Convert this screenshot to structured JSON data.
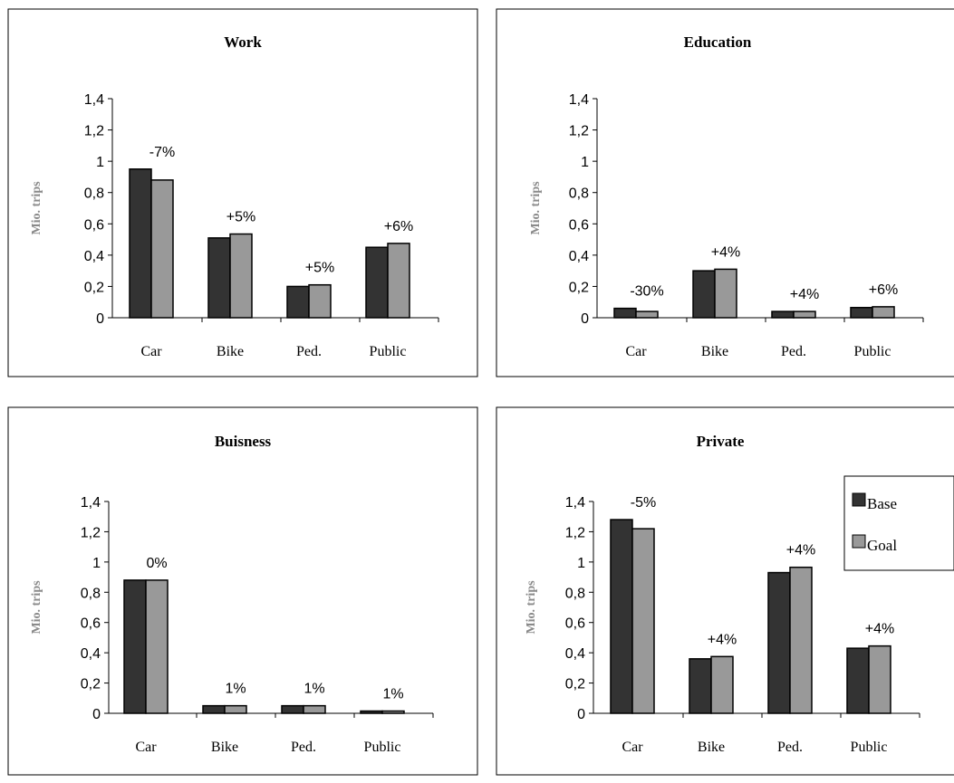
{
  "colors": {
    "base": "#333333",
    "goal": "#999999"
  },
  "legend": [
    {
      "label": "Base",
      "color": "#333333"
    },
    {
      "label": "Goal",
      "color": "#999999"
    }
  ],
  "chart_data": [
    {
      "type": "bar",
      "title": "Work",
      "ylabel": "Mio. trips",
      "ylim": [
        0,
        1.4
      ],
      "yticks": [
        "0",
        "0,2",
        "0,4",
        "0,6",
        "0,8",
        "1",
        "1,2",
        "1,4"
      ],
      "categories": [
        "Car",
        "Bike",
        "Ped.",
        "Public"
      ],
      "series": [
        {
          "name": "Base",
          "values": [
            0.95,
            0.51,
            0.2,
            0.45
          ]
        },
        {
          "name": "Goal",
          "values": [
            0.88,
            0.535,
            0.21,
            0.475
          ]
        }
      ],
      "annotations": [
        "-7%",
        "+5%",
        "+5%",
        "+6%"
      ]
    },
    {
      "type": "bar",
      "title": "Education",
      "ylabel": "Mio. trips",
      "ylim": [
        0,
        1.4
      ],
      "yticks": [
        "0",
        "0,2",
        "0,4",
        "0,6",
        "0,8",
        "1",
        "1,2",
        "1,4"
      ],
      "categories": [
        "Car",
        "Bike",
        "Ped.",
        "Public"
      ],
      "series": [
        {
          "name": "Base",
          "values": [
            0.06,
            0.3,
            0.04,
            0.065
          ]
        },
        {
          "name": "Goal",
          "values": [
            0.04,
            0.31,
            0.04,
            0.07
          ]
        }
      ],
      "annotations": [
        "-30%",
        "+4%",
        "+4%",
        "+6%"
      ]
    },
    {
      "type": "bar",
      "title": "Buisness",
      "ylabel": "Mio. trips",
      "ylim": [
        0,
        1.4
      ],
      "yticks": [
        "0",
        "0,2",
        "0,4",
        "0,6",
        "0,8",
        "1",
        "1,2",
        "1,4"
      ],
      "categories": [
        "Car",
        "Bike",
        "Ped.",
        "Public"
      ],
      "series": [
        {
          "name": "Base",
          "values": [
            0.88,
            0.05,
            0.05,
            0.015
          ]
        },
        {
          "name": "Goal",
          "values": [
            0.88,
            0.05,
            0.05,
            0.015
          ]
        }
      ],
      "annotations": [
        "0%",
        "1%",
        "1%",
        "1%"
      ]
    },
    {
      "type": "bar",
      "title": "Private",
      "ylabel": "Mio. trips",
      "ylim": [
        0,
        1.4
      ],
      "yticks": [
        "0",
        "0,2",
        "0,4",
        "0,6",
        "0,8",
        "1",
        "1,2",
        "1,4"
      ],
      "categories": [
        "Car",
        "Bike",
        "Ped.",
        "Public"
      ],
      "series": [
        {
          "name": "Base",
          "values": [
            1.28,
            0.36,
            0.93,
            0.43
          ]
        },
        {
          "name": "Goal",
          "values": [
            1.22,
            0.375,
            0.965,
            0.445
          ]
        }
      ],
      "annotations": [
        "-5%",
        "+4%",
        "+4%",
        "+4%"
      ]
    }
  ]
}
